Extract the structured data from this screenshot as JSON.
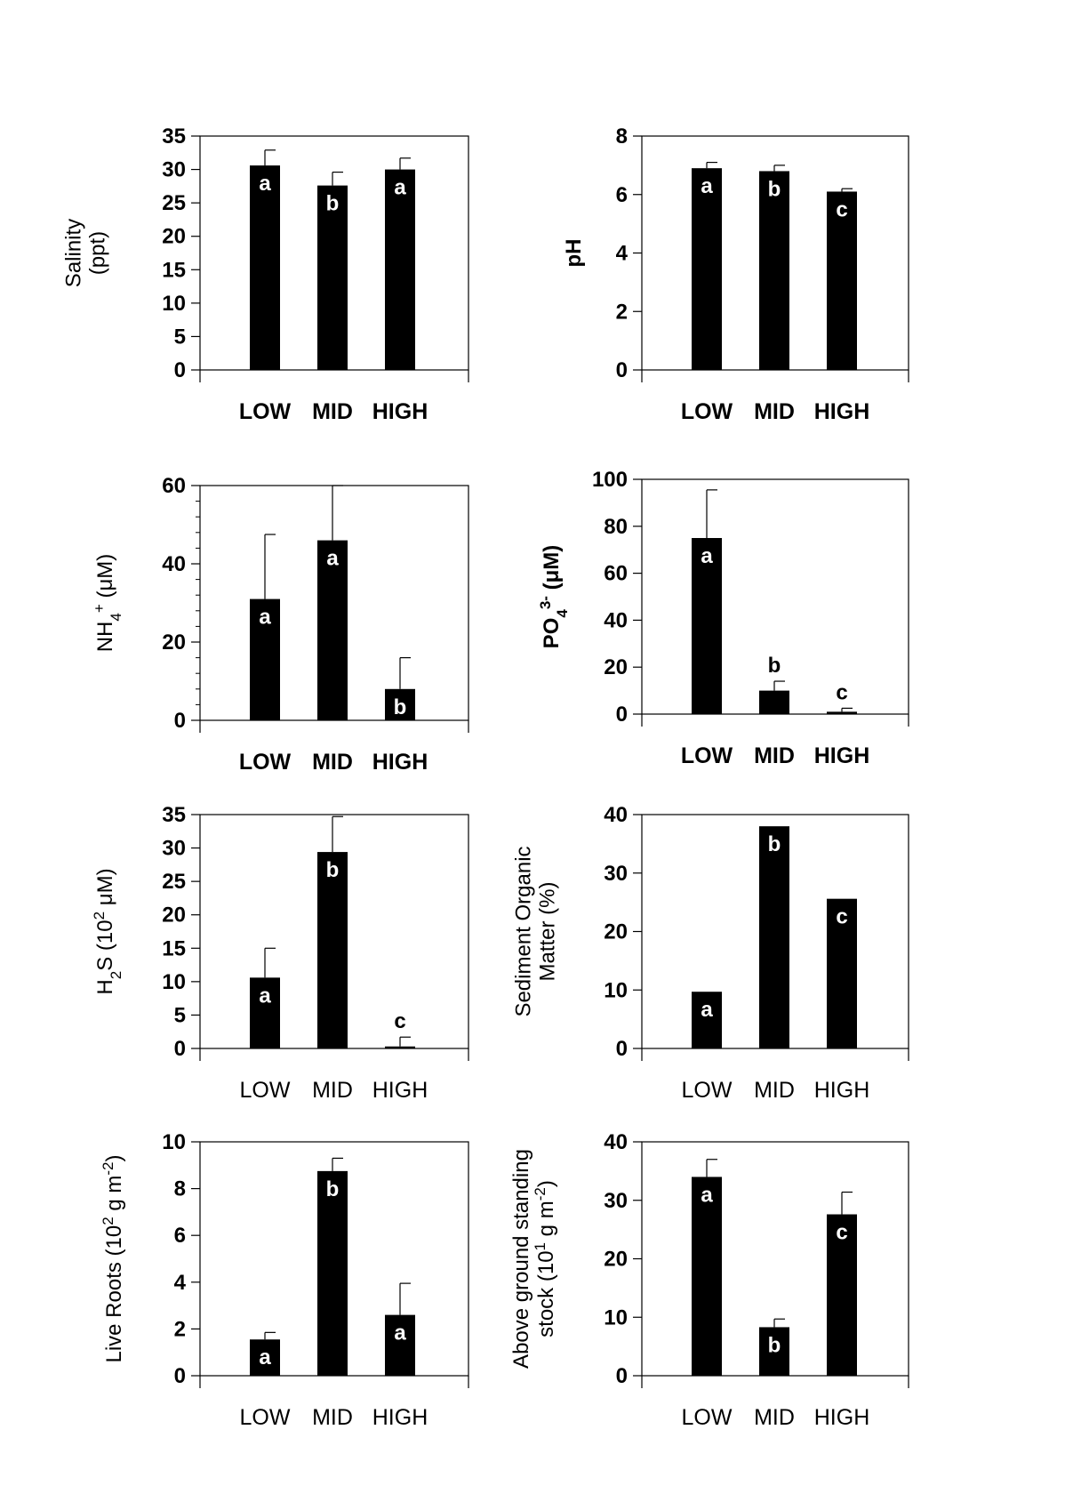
{
  "chart_data": [
    {
      "type": "bar",
      "panel": "salinity",
      "categories": [
        "LOW",
        "MID",
        "HIGH"
      ],
      "values": [
        30.6,
        27.6,
        30.0
      ],
      "errors": [
        2.3,
        2.0,
        1.7
      ],
      "significance": [
        "a",
        "b",
        "a"
      ],
      "ylabel_lines": [
        "Salinity",
        "(ppt)"
      ],
      "ylim": [
        0,
        35
      ],
      "yticks": [
        0,
        5,
        10,
        15,
        20,
        25,
        30,
        35
      ],
      "yticks_text": [
        "0",
        "5",
        "10",
        "15",
        "20",
        "25",
        "30",
        "35"
      ],
      "bold_ticks": true,
      "bold_categories": true
    },
    {
      "type": "bar",
      "panel": "ph",
      "categories": [
        "LOW",
        "MID",
        "HIGH"
      ],
      "values": [
        6.9,
        6.8,
        6.1
      ],
      "errors": [
        0.2,
        0.2,
        0.1
      ],
      "significance": [
        "a",
        "b",
        "c"
      ],
      "ylabel_lines": [
        "pH"
      ],
      "ylim": [
        0,
        8
      ],
      "yticks": [
        0,
        2,
        4,
        6,
        8
      ],
      "yticks_text": [
        "0",
        "2",
        "4",
        "6",
        "8"
      ],
      "bold_ticks": true,
      "bold_categories": true,
      "ylabel_bold": true
    },
    {
      "type": "bar",
      "panel": "ammonium",
      "categories": [
        "LOW",
        "MID",
        "HIGH"
      ],
      "values": [
        31.0,
        46.0,
        8.0
      ],
      "errors": [
        16.5,
        14.0,
        8.0
      ],
      "significance": [
        "a",
        "a",
        "b"
      ],
      "ylabel_rich": [
        {
          "t": "NH"
        },
        {
          "t": "4",
          "s": "sub"
        },
        {
          "t": "+",
          "s": "sup"
        },
        {
          "t": " (μM)"
        }
      ],
      "ylim": [
        0,
        60
      ],
      "yticks": [
        0,
        20,
        40,
        60
      ],
      "yticks_text": [
        "0",
        "20",
        "40",
        "60"
      ],
      "minor_ticks": 4,
      "bold_ticks": true,
      "bold_categories": true
    },
    {
      "type": "bar",
      "panel": "phosphate",
      "categories": [
        "LOW",
        "MID",
        "HIGH"
      ],
      "values": [
        75.0,
        10.0,
        1.0
      ],
      "errors": [
        20.5,
        4.0,
        1.5
      ],
      "significance": [
        "a",
        "b",
        "c"
      ],
      "sig_above": [
        false,
        true,
        true
      ],
      "ylabel_rich": [
        {
          "t": "PO"
        },
        {
          "t": "4",
          "s": "sub"
        },
        {
          "t": "3-",
          "s": "sup"
        },
        {
          "t": " (μM)"
        }
      ],
      "ylabel_bold": true,
      "ylim": [
        0,
        100
      ],
      "yticks": [
        0,
        20,
        40,
        60,
        80,
        100
      ],
      "yticks_text": [
        "0",
        "20",
        "40",
        "60",
        "80",
        "100"
      ],
      "bold_ticks": true,
      "bold_categories": true
    },
    {
      "type": "bar",
      "panel": "sulfide",
      "categories": [
        "LOW",
        "MID",
        "HIGH"
      ],
      "values": [
        10.6,
        29.4,
        0.3
      ],
      "errors": [
        4.4,
        5.3,
        1.4
      ],
      "significance": [
        "a",
        "b",
        "c"
      ],
      "sig_above": [
        false,
        false,
        true
      ],
      "ylabel_rich": [
        {
          "t": "H"
        },
        {
          "t": "2",
          "s": "sub"
        },
        {
          "t": "S (10"
        },
        {
          "t": "2",
          "s": "sup"
        },
        {
          "t": " μM)"
        }
      ],
      "ylim": [
        0,
        35
      ],
      "yticks": [
        0,
        5,
        10,
        15,
        20,
        25,
        30,
        35
      ],
      "yticks_text": [
        "0",
        "5",
        "10",
        "15",
        "20",
        "25",
        "30",
        "35"
      ],
      "bold_ticks": false,
      "bold_categories": false
    },
    {
      "type": "bar",
      "panel": "organic-matter",
      "categories": [
        "LOW",
        "MID",
        "HIGH"
      ],
      "values": [
        9.7,
        38.0,
        25.6
      ],
      "errors": [
        0,
        0,
        0
      ],
      "significance": [
        "a",
        "b",
        "c"
      ],
      "ylabel_lines": [
        "Sediment Organic",
        "Matter (%)"
      ],
      "ylim": [
        0,
        40
      ],
      "yticks": [
        0,
        10,
        20,
        30,
        40
      ],
      "yticks_text": [
        "0",
        "10",
        "20",
        "30",
        "40"
      ],
      "bold_ticks": false,
      "bold_categories": false
    },
    {
      "type": "bar",
      "panel": "live-roots",
      "categories": [
        "LOW",
        "MID",
        "HIGH"
      ],
      "values": [
        1.55,
        8.75,
        2.6
      ],
      "errors": [
        0.3,
        0.55,
        1.35
      ],
      "significance": [
        "a",
        "b",
        "a"
      ],
      "ylabel_rich": [
        {
          "t": "Live Roots (10"
        },
        {
          "t": "2",
          "s": "sup"
        },
        {
          "t": " g m"
        },
        {
          "t": "-2",
          "s": "sup"
        },
        {
          "t": ")"
        }
      ],
      "ylim": [
        0,
        10
      ],
      "yticks": [
        0,
        2,
        4,
        6,
        8,
        10
      ],
      "yticks_text": [
        "0",
        "2",
        "4",
        "6",
        "8",
        "10"
      ],
      "bold_ticks": false,
      "bold_categories": false
    },
    {
      "type": "bar",
      "panel": "standing-stock",
      "categories": [
        "LOW",
        "MID",
        "HIGH"
      ],
      "values": [
        34.0,
        8.3,
        27.6
      ],
      "errors": [
        3.0,
        1.4,
        3.8
      ],
      "significance": [
        "a",
        "b",
        "c"
      ],
      "ylabel_rich_lines": [
        [
          {
            "t": "Above ground standing"
          }
        ],
        [
          {
            "t": "stock (10"
          },
          {
            "t": "1",
            "s": "sup"
          },
          {
            "t": " g m"
          },
          {
            "t": "-2",
            "s": "sup"
          },
          {
            "t": ")"
          }
        ]
      ],
      "ylim": [
        0,
        40
      ],
      "yticks": [
        0,
        10,
        20,
        30,
        40
      ],
      "yticks_text": [
        "0",
        "10",
        "20",
        "30",
        "40"
      ],
      "bold_ticks": false,
      "bold_categories": false
    }
  ]
}
